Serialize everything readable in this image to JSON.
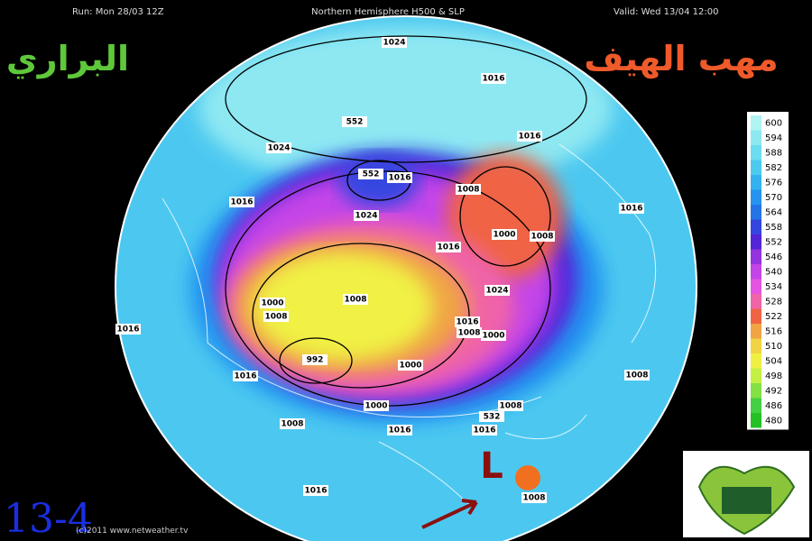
{
  "header": {
    "run": "Run: Mon 28/03 12Z",
    "title": "Northern Hemisphere H500 & SLP",
    "valid": "Valid: Wed 13/04 12:00"
  },
  "branding": {
    "left": "البراري",
    "right": "مهب الهيف",
    "date": "13-4",
    "credit": "(c)2011 www.netweather.tv"
  },
  "map": {
    "low_marker": "L",
    "contour_labels": [
      1024,
      1016,
      552,
      1016,
      1024,
      552,
      1016,
      1008,
      1016,
      1016,
      1024,
      1016,
      1000,
      1008,
      1024,
      1000,
      1008,
      1008,
      1016,
      1008,
      1000,
      1016,
      992,
      1000,
      1016,
      1008,
      1000,
      1008,
      532,
      1008,
      1016,
      1016,
      1016,
      1008
    ]
  },
  "colorbar": {
    "levels": [
      600,
      594,
      588,
      582,
      576,
      570,
      564,
      558,
      552,
      546,
      540,
      534,
      528,
      522,
      516,
      510,
      504,
      498,
      492,
      486,
      480
    ],
    "colors": [
      "#b0f4f4",
      "#8ee8f2",
      "#6cdcf0",
      "#4ccaf0",
      "#34b2f0",
      "#2494f0",
      "#2474e8",
      "#3446e0",
      "#5424d8",
      "#9434e0",
      "#c444e8",
      "#e454e0",
      "#f064a8",
      "#f06444",
      "#f0a444",
      "#f0d444",
      "#f0f044",
      "#c4f044",
      "#84e044",
      "#44d044",
      "#24c024"
    ]
  }
}
